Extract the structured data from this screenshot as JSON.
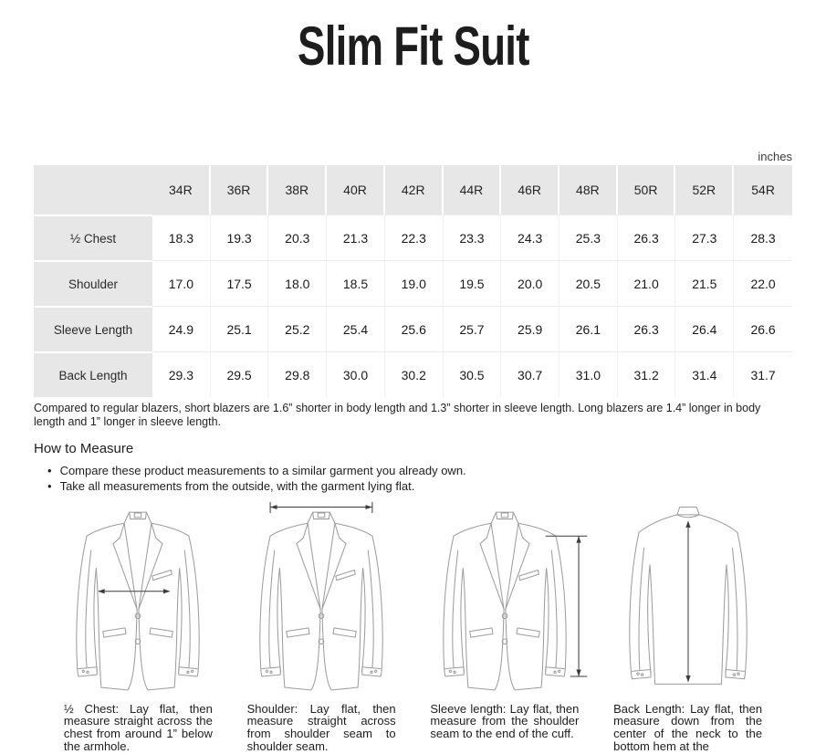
{
  "title": "Slim Fit Suit",
  "units_label": "inches",
  "size_table": {
    "columns": [
      "34R",
      "36R",
      "38R",
      "40R",
      "42R",
      "44R",
      "46R",
      "48R",
      "50R",
      "52R",
      "54R"
    ],
    "rows": [
      {
        "label": "½  Chest",
        "values": [
          "18.3",
          "19.3",
          "20.3",
          "21.3",
          "22.3",
          "23.3",
          "24.3",
          "25.3",
          "26.3",
          "27.3",
          "28.3"
        ]
      },
      {
        "label": "Shoulder",
        "values": [
          "17.0",
          "17.5",
          "18.0",
          "18.5",
          "19.0",
          "19.5",
          "20.0",
          "20.5",
          "21.0",
          "21.5",
          "22.0"
        ]
      },
      {
        "label": "Sleeve Length",
        "values": [
          "24.9",
          "25.1",
          "25.2",
          "25.4",
          "25.6",
          "25.7",
          "25.9",
          "26.1",
          "26.3",
          "26.4",
          "26.6"
        ]
      },
      {
        "label": "Back Length",
        "values": [
          "29.3",
          "29.5",
          "29.8",
          "30.0",
          "30.2",
          "30.5",
          "30.7",
          "31.0",
          "31.2",
          "31.4",
          "31.7"
        ]
      }
    ]
  },
  "note": "Compared to regular blazers, short blazers are 1.6”  shorter in body length and 1.3”  shorter in sleeve length. Long blazers are 1.4”  longer in body length and 1”  longer in sleeve length.",
  "how_to_measure": {
    "heading": "How to Measure",
    "bullets": [
      "Compare these product measurements to a similar garment you already own.",
      "Take all measurements from the outside, with the garment lying flat."
    ]
  },
  "diagrams": [
    {
      "icon": "suit-front-chest-arrow-diagram",
      "caption": "½ Chest:  Lay flat,  then measure straight across the chest from around 1”  below the armhole."
    },
    {
      "icon": "suit-front-shoulder-arrow-diagram",
      "caption": "Shoulder: Lay flat, then measure straight across from shoulder seam to shoulder seam."
    },
    {
      "icon": "suit-front-sleeve-arrow-diagram",
      "caption": "Sleeve length: Lay flat, then measure from the shoulder seam to the end of the cuff."
    },
    {
      "icon": "suit-back-length-arrow-diagram",
      "caption": "Back Length:  Lay flat, then measure down from the center of the neck to the bottom hem at the"
    }
  ],
  "colors": {
    "table_header_bg": "#e7e7e7",
    "line_art": "#9c9c9c",
    "arrow": "#3c3c3c",
    "text": "#1d1d1d"
  }
}
